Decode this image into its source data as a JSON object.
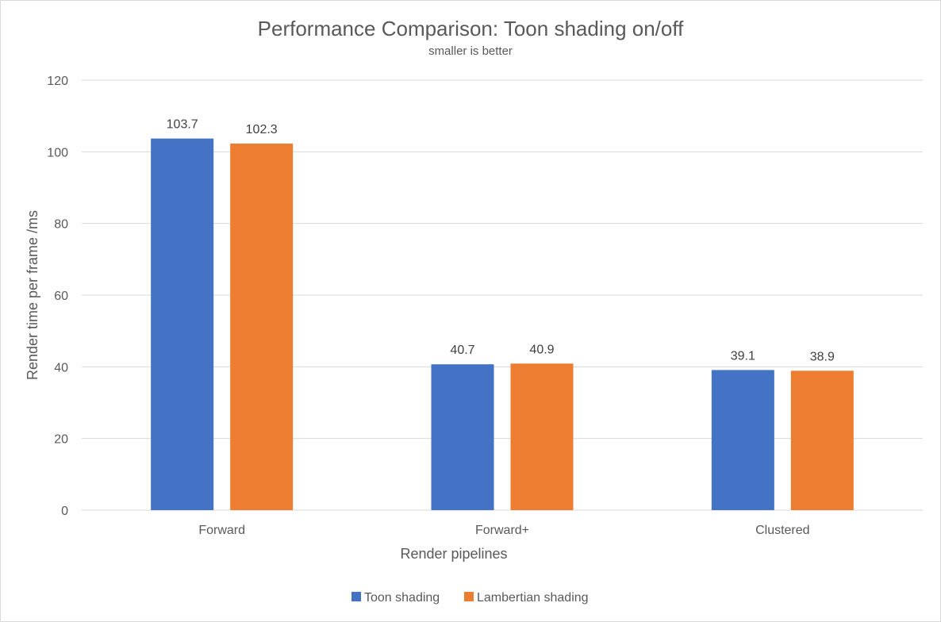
{
  "colors": {
    "toon": "#4472C4",
    "lambertian": "#ED7D31",
    "grid": "#D9D9D9",
    "text": "#595959"
  },
  "chart_data": {
    "type": "bar",
    "title": "Performance Comparison: Toon shading on/off",
    "subtitle": "smaller is better",
    "xlabel": "Render pipelines",
    "ylabel": "Render time per frame /ms",
    "categories": [
      "Forward",
      "Forward+",
      "Clustered"
    ],
    "series": [
      {
        "name": "Toon shading",
        "color": "#4472C4",
        "values": [
          103.7,
          40.7,
          39.1
        ]
      },
      {
        "name": "Lambertian shading",
        "color": "#ED7D31",
        "values": [
          102.3,
          40.9,
          38.9
        ]
      }
    ],
    "ylim": [
      0,
      120
    ],
    "yticks": [
      0,
      20,
      40,
      60,
      80,
      100,
      120
    ],
    "grid": true,
    "legend": "bottom"
  }
}
